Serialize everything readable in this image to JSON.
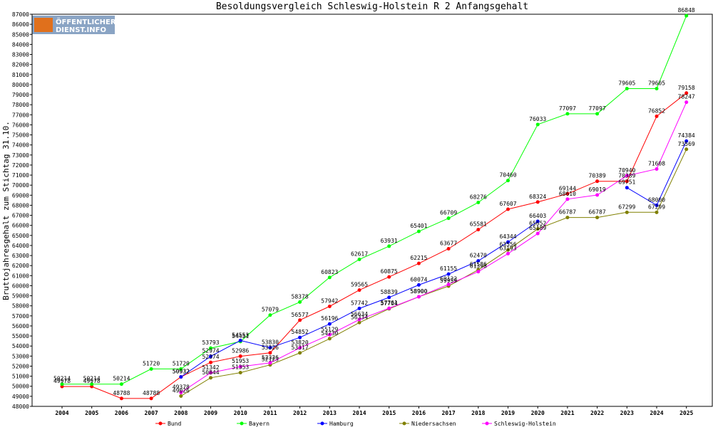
{
  "logo": {
    "line1": "ÖFFENTLICHER",
    "line2": "DIENST.INFO"
  },
  "chart_data": {
    "type": "line",
    "title": "Besoldungsvergleich Schleswig-Holstein R 2 Anfangsgehalt",
    "xlabel": "",
    "ylabel": "Bruttojahresgehalt zum Stichtag 31.10.",
    "x": [
      "2004",
      "2005",
      "2006",
      "2007",
      "2008",
      "2009",
      "2010",
      "2011",
      "2012",
      "2013",
      "2014",
      "2015",
      "2016",
      "2017",
      "2018",
      "2019",
      "2020",
      "2021",
      "2022",
      "2023",
      "2024",
      "2025"
    ],
    "ylim": [
      48000,
      87000
    ],
    "ytick_step": 1000,
    "grid": false,
    "legend_position": "bottom",
    "series": [
      {
        "name": "Bund",
        "color": "#ff0000",
        "values": [
          49978,
          49978,
          48788,
          48788,
          50932,
          52374,
          52986,
          53326,
          56577,
          57942,
          59565,
          60875,
          62215,
          63677,
          65581,
          67607,
          68324,
          69144,
          70389,
          70389,
          76852,
          79158
        ]
      },
      {
        "name": "Bayern",
        "color": "#00ff00",
        "values": [
          50214,
          50214,
          50214,
          51720,
          51720,
          53793,
          54451,
          57079,
          58378,
          60823,
          62617,
          63931,
          65401,
          66709,
          68276,
          70460,
          76033,
          77097,
          77097,
          79605,
          79605,
          86848
        ]
      },
      {
        "name": "Hamburg",
        "color": "#0000ff",
        "values": [
          null,
          null,
          null,
          null,
          50932,
          52974,
          54553,
          53830,
          54852,
          56196,
          57742,
          58839,
          60074,
          61155,
          62470,
          64344,
          66403,
          null,
          null,
          69751,
          68000,
          74384
        ]
      },
      {
        "name": "Niedersachsen",
        "color": "#808000",
        "values": [
          null,
          null,
          null,
          null,
          49026,
          50844,
          51353,
          52123,
          53317,
          54730,
          56334,
          57704,
          58900,
          59959,
          61586,
          63556,
          65652,
          66787,
          66787,
          67299,
          67299,
          73569
        ]
      },
      {
        "name": "Schleswig-Holstein",
        "color": "#ff00ff",
        "values": [
          null,
          null,
          null,
          null,
          49378,
          51342,
          51953,
          52326,
          53820,
          55129,
          56634,
          57761,
          58900,
          60132,
          61398,
          63193,
          65189,
          68610,
          69019,
          70940,
          71608,
          78247
        ]
      }
    ]
  }
}
